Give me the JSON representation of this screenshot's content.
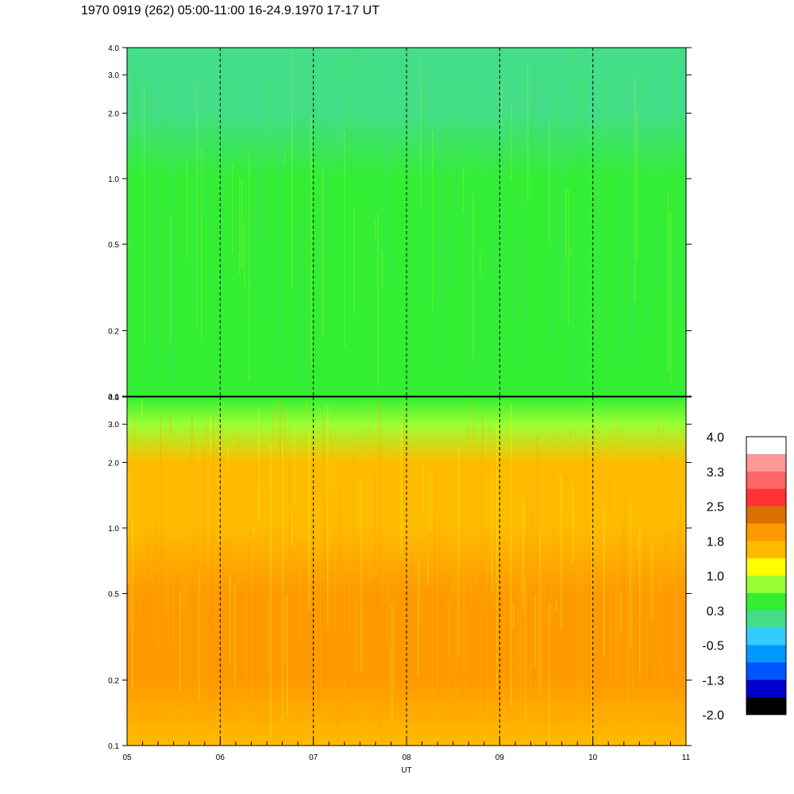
{
  "title": "1970 0919 (262) 05:00-11:00 16-24.9.1970  17-17 UT",
  "chart_data": [
    {
      "type": "heatmap",
      "panel": "upper",
      "x_range": [
        "05",
        "11"
      ],
      "y_scale": "log",
      "ylim": [
        0.1,
        4.0
      ],
      "y_ticks": [
        "0.1",
        "0.2",
        "0.5",
        "1.0",
        "2.0",
        "3.0",
        "4.0"
      ],
      "x_ticks": [
        "05",
        "06",
        "07",
        "08",
        "09",
        "10",
        "11"
      ],
      "grid": "vertical dashed lines at each hour",
      "value_profile": [
        {
          "y": 0.1,
          "value": 0.3
        },
        {
          "y": 0.2,
          "value": 0.4
        },
        {
          "y": 0.5,
          "value": 0.5
        },
        {
          "y": 1.0,
          "value": 0.3
        },
        {
          "y": 2.0,
          "value": 0.2
        },
        {
          "y": 3.0,
          "value": 0.1
        },
        {
          "y": 4.0,
          "value": 0.1
        }
      ]
    },
    {
      "type": "heatmap",
      "panel": "lower",
      "x_range": [
        "05",
        "11"
      ],
      "y_scale": "log",
      "ylim": [
        0.1,
        4.0
      ],
      "y_ticks": [
        "0.1",
        "0.2",
        "0.5",
        "1.0",
        "2.0",
        "3.0",
        "4.0"
      ],
      "x_ticks": [
        "05",
        "06",
        "07",
        "08",
        "09",
        "10",
        "11"
      ],
      "xlabel": "UT",
      "grid": "vertical dashed lines at each hour",
      "value_profile": [
        {
          "y": 0.1,
          "value": 1.4
        },
        {
          "y": 0.2,
          "value": 1.8
        },
        {
          "y": 0.5,
          "value": 2.0
        },
        {
          "y": 1.0,
          "value": 1.7
        },
        {
          "y": 2.0,
          "value": 1.4
        },
        {
          "y": 3.0,
          "value": 1.0
        },
        {
          "y": 4.0,
          "value": 0.6
        }
      ]
    }
  ],
  "colorbar": {
    "labels": [
      "4.0",
      "3.3",
      "2.5",
      "1.8",
      "1.0",
      "0.3",
      "-0.5",
      "-1.3",
      "-2.0"
    ],
    "colors": [
      "#ffffff",
      "#ff9999",
      "#ff6666",
      "#ff3333",
      "#d97000",
      "#ff9900",
      "#ffbb00",
      "#ffff00",
      "#99ff33",
      "#33ee33",
      "#44dd88",
      "#33ccff",
      "#0099ff",
      "#0055ff",
      "#0000cc",
      "#000000"
    ]
  }
}
